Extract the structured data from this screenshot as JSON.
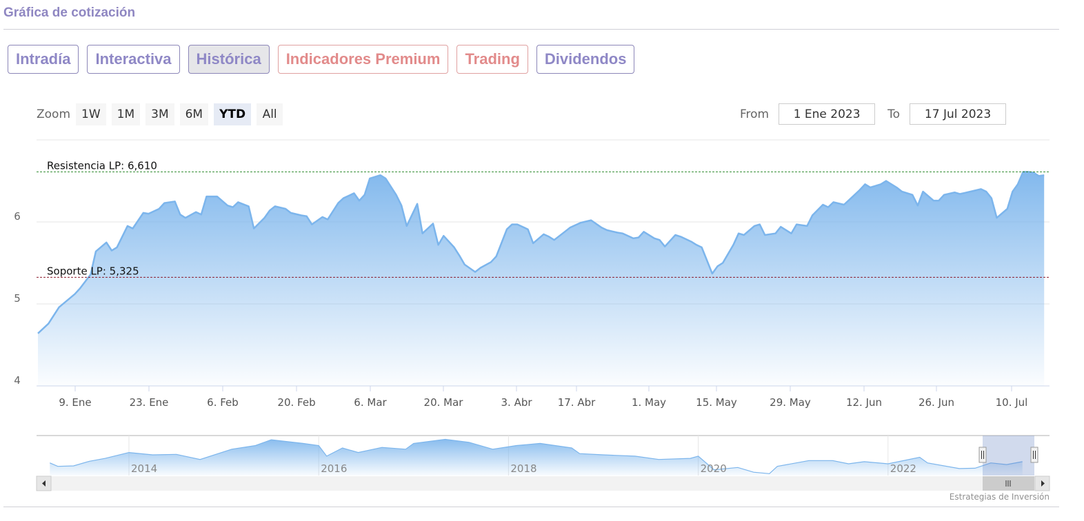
{
  "header": {
    "title": "Gráfica de cotización"
  },
  "tabs": [
    {
      "label": "Intradía",
      "style": "purple",
      "active": false
    },
    {
      "label": "Interactiva",
      "style": "purple",
      "active": false
    },
    {
      "label": "Histórica",
      "style": "purple",
      "active": true
    },
    {
      "label": "Indicadores Premium",
      "style": "red",
      "active": false
    },
    {
      "label": "Trading",
      "style": "red",
      "active": false
    },
    {
      "label": "Dividendos",
      "style": "purple",
      "active": false
    }
  ],
  "zoom": {
    "label": "Zoom",
    "buttons": [
      "1W",
      "1M",
      "3M",
      "6M",
      "YTD",
      "All"
    ],
    "selected": "YTD"
  },
  "range": {
    "from_label": "From",
    "from_value": "1 Ene 2023",
    "to_label": "To",
    "to_value": "17 Jul 2023"
  },
  "credits": "Estrategias de Inversión",
  "colors": {
    "line": "#7cb5ec",
    "resistance": "#2e8b2e",
    "support": "#8b1a2b",
    "purple": "#8f88c6",
    "red": "#e28b8b"
  },
  "chart_data": {
    "type": "area",
    "ylim": [
      4,
      7
    ],
    "yticks": [
      "4",
      "5",
      "6"
    ],
    "grid": true,
    "xtick_labels": [
      "9. Ene",
      "23. Ene",
      "6. Feb",
      "20. Feb",
      "6. Mar",
      "20. Mar",
      "3. Abr",
      "17. Abr",
      "1. May",
      "15. May",
      "29. May",
      "12. Jun",
      "26. Jun",
      "10. Jul"
    ],
    "plot_lines": [
      {
        "label": "Resistencia LP: 6,610",
        "value": 6.61,
        "color": "#2e8b2e"
      },
      {
        "label": "Soporte LP: 5,325",
        "value": 5.325,
        "color": "#8b1a2b"
      }
    ],
    "series": [
      {
        "points": [
          [
            "2023-01-02",
            4.64
          ],
          [
            "2023-01-04",
            4.76
          ],
          [
            "2023-01-06",
            4.96
          ],
          [
            "2023-01-09",
            5.12
          ],
          [
            "2023-01-10",
            5.19
          ],
          [
            "2023-01-12",
            5.36
          ],
          [
            "2023-01-13",
            5.64
          ],
          [
            "2023-01-15",
            5.75
          ],
          [
            "2023-01-16",
            5.65
          ],
          [
            "2023-01-17",
            5.69
          ],
          [
            "2023-01-19",
            5.95
          ],
          [
            "2023-01-20",
            5.92
          ],
          [
            "2023-01-22",
            6.11
          ],
          [
            "2023-01-23",
            6.1
          ],
          [
            "2023-01-25",
            6.16
          ],
          [
            "2023-01-26",
            6.23
          ],
          [
            "2023-01-28",
            6.25
          ],
          [
            "2023-01-29",
            6.09
          ],
          [
            "2023-01-30",
            6.05
          ],
          [
            "2023-02-01",
            6.12
          ],
          [
            "2023-02-02",
            6.09
          ],
          [
            "2023-02-03",
            6.31
          ],
          [
            "2023-02-05",
            6.31
          ],
          [
            "2023-02-07",
            6.2
          ],
          [
            "2023-02-08",
            6.18
          ],
          [
            "2023-02-09",
            6.24
          ],
          [
            "2023-02-11",
            6.19
          ],
          [
            "2023-02-12",
            5.92
          ],
          [
            "2023-02-14",
            6.05
          ],
          [
            "2023-02-15",
            6.14
          ],
          [
            "2023-02-16",
            6.19
          ],
          [
            "2023-02-18",
            6.16
          ],
          [
            "2023-02-19",
            6.11
          ],
          [
            "2023-02-21",
            6.08
          ],
          [
            "2023-02-22",
            6.07
          ],
          [
            "2023-02-23",
            5.97
          ],
          [
            "2023-02-25",
            6.06
          ],
          [
            "2023-02-26",
            6.03
          ],
          [
            "2023-02-28",
            6.23
          ],
          [
            "2023-03-01",
            6.29
          ],
          [
            "2023-03-03",
            6.35
          ],
          [
            "2023-03-04",
            6.26
          ],
          [
            "2023-03-05",
            6.33
          ],
          [
            "2023-03-06",
            6.53
          ],
          [
            "2023-03-08",
            6.57
          ],
          [
            "2023-03-09",
            6.53
          ],
          [
            "2023-03-11",
            6.33
          ],
          [
            "2023-03-12",
            6.2
          ],
          [
            "2023-03-13",
            5.95
          ],
          [
            "2023-03-15",
            6.22
          ],
          [
            "2023-03-16",
            5.86
          ],
          [
            "2023-03-18",
            5.98
          ],
          [
            "2023-03-19",
            5.72
          ],
          [
            "2023-03-20",
            5.83
          ],
          [
            "2023-03-22",
            5.69
          ],
          [
            "2023-03-23",
            5.59
          ],
          [
            "2023-03-24",
            5.48
          ],
          [
            "2023-03-26",
            5.39
          ],
          [
            "2023-03-27",
            5.44
          ],
          [
            "2023-03-29",
            5.51
          ],
          [
            "2023-03-30",
            5.58
          ],
          [
            "2023-04-01",
            5.91
          ],
          [
            "2023-04-02",
            5.97
          ],
          [
            "2023-04-03",
            5.97
          ],
          [
            "2023-04-05",
            5.91
          ],
          [
            "2023-04-06",
            5.74
          ],
          [
            "2023-04-08",
            5.85
          ],
          [
            "2023-04-09",
            5.82
          ],
          [
            "2023-04-10",
            5.78
          ],
          [
            "2023-04-12",
            5.88
          ],
          [
            "2023-04-13",
            5.93
          ],
          [
            "2023-04-15",
            5.99
          ],
          [
            "2023-04-17",
            6.02
          ],
          [
            "2023-04-19",
            5.93
          ],
          [
            "2023-04-20",
            5.9
          ],
          [
            "2023-04-22",
            5.87
          ],
          [
            "2023-04-23",
            5.86
          ],
          [
            "2023-04-25",
            5.8
          ],
          [
            "2023-04-26",
            5.81
          ],
          [
            "2023-04-27",
            5.88
          ],
          [
            "2023-04-29",
            5.8
          ],
          [
            "2023-04-30",
            5.78
          ],
          [
            "2023-05-01",
            5.7
          ],
          [
            "2023-05-03",
            5.84
          ],
          [
            "2023-05-04",
            5.82
          ],
          [
            "2023-05-06",
            5.76
          ],
          [
            "2023-05-07",
            5.72
          ],
          [
            "2023-05-08",
            5.69
          ],
          [
            "2023-05-10",
            5.37
          ],
          [
            "2023-05-11",
            5.46
          ],
          [
            "2023-05-12",
            5.5
          ],
          [
            "2023-05-14",
            5.72
          ],
          [
            "2023-05-15",
            5.86
          ],
          [
            "2023-05-16",
            5.84
          ],
          [
            "2023-05-18",
            5.95
          ],
          [
            "2023-05-19",
            5.97
          ],
          [
            "2023-05-20",
            5.84
          ],
          [
            "2023-05-22",
            5.86
          ],
          [
            "2023-05-23",
            5.94
          ],
          [
            "2023-05-25",
            5.86
          ],
          [
            "2023-05-26",
            5.97
          ],
          [
            "2023-05-28",
            5.95
          ],
          [
            "2023-05-29",
            6.08
          ],
          [
            "2023-05-31",
            6.21
          ],
          [
            "2023-06-01",
            6.18
          ],
          [
            "2023-06-02",
            6.24
          ],
          [
            "2023-06-04",
            6.21
          ],
          [
            "2023-06-05",
            6.27
          ],
          [
            "2023-06-07",
            6.39
          ],
          [
            "2023-06-08",
            6.46
          ],
          [
            "2023-06-09",
            6.42
          ],
          [
            "2023-06-11",
            6.46
          ],
          [
            "2023-06-12",
            6.5
          ],
          [
            "2023-06-14",
            6.42
          ],
          [
            "2023-06-15",
            6.37
          ],
          [
            "2023-06-17",
            6.33
          ],
          [
            "2023-06-18",
            6.2
          ],
          [
            "2023-06-19",
            6.37
          ],
          [
            "2023-06-21",
            6.26
          ],
          [
            "2023-06-22",
            6.26
          ],
          [
            "2023-06-23",
            6.33
          ],
          [
            "2023-06-25",
            6.36
          ],
          [
            "2023-06-26",
            6.34
          ],
          [
            "2023-06-28",
            6.37
          ],
          [
            "2023-06-30",
            6.4
          ],
          [
            "2023-07-01",
            6.37
          ],
          [
            "2023-07-02",
            6.29
          ],
          [
            "2023-07-03",
            6.05
          ],
          [
            "2023-07-05",
            6.16
          ],
          [
            "2023-07-06",
            6.37
          ],
          [
            "2023-07-07",
            6.46
          ],
          [
            "2023-07-08",
            6.61
          ],
          [
            "2023-07-09",
            6.61
          ],
          [
            "2023-07-10",
            6.6
          ],
          [
            "2023-07-11",
            6.56
          ],
          [
            "2023-07-12",
            6.57
          ]
        ]
      }
    ],
    "navigator": {
      "xtick_labels": [
        "2014",
        "2016",
        "2018",
        "2020",
        "2022"
      ],
      "points": [
        [
          "2013-03",
          5.85
        ],
        [
          "2013-04",
          4.9
        ],
        [
          "2013-06",
          5.04
        ],
        [
          "2013-08",
          6.3
        ],
        [
          "2013-10",
          7.1
        ],
        [
          "2014-01",
          8.7
        ],
        [
          "2014-04",
          8.06
        ],
        [
          "2014-07",
          8.2
        ],
        [
          "2014-10",
          6.8
        ],
        [
          "2015-02",
          9.6
        ],
        [
          "2015-05",
          10.6
        ],
        [
          "2015-07",
          12.2
        ],
        [
          "2015-11",
          11.2
        ],
        [
          "2016-01",
          10.6
        ],
        [
          "2016-02",
          7.7
        ],
        [
          "2016-04",
          9.95
        ],
        [
          "2016-06",
          8.7
        ],
        [
          "2016-09",
          10.1
        ],
        [
          "2016-12",
          9.6
        ],
        [
          "2017-01",
          11.2
        ],
        [
          "2017-05",
          12.3
        ],
        [
          "2017-08",
          11.5
        ],
        [
          "2017-11",
          9.6
        ],
        [
          "2018-02",
          10.6
        ],
        [
          "2018-05",
          11.2
        ],
        [
          "2018-09",
          9.95
        ],
        [
          "2018-10",
          8.4
        ],
        [
          "2019-01",
          8.06
        ],
        [
          "2019-05",
          7.7
        ],
        [
          "2019-08",
          6.8
        ],
        [
          "2019-12",
          7.1
        ],
        [
          "2020-01",
          7.7
        ],
        [
          "2020-03",
          3.96
        ],
        [
          "2020-06",
          4.6
        ],
        [
          "2020-08",
          3.3
        ],
        [
          "2020-10",
          2.9
        ],
        [
          "2020-11",
          4.9
        ],
        [
          "2021-03",
          6.5
        ],
        [
          "2021-06",
          6.5
        ],
        [
          "2021-08",
          5.6
        ],
        [
          "2021-10",
          6.2
        ],
        [
          "2022-01",
          5.6
        ],
        [
          "2022-05",
          7.4
        ],
        [
          "2022-06",
          5.85
        ],
        [
          "2022-10",
          4.3
        ],
        [
          "2022-12",
          4.4
        ],
        [
          "2023-02",
          5.85
        ],
        [
          "2023-04",
          5.4
        ],
        [
          "2023-06",
          6.2
        ]
      ]
    }
  }
}
